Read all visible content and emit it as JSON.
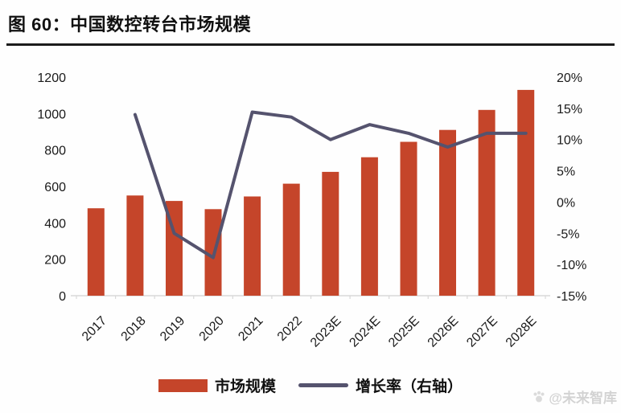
{
  "header": {
    "title": "图 60：中国数控转台市场规模"
  },
  "chart_data": {
    "type": "bar",
    "title": "中国数控转台市场规模",
    "categories": [
      "2017",
      "2018",
      "2019",
      "2020",
      "2021",
      "2022",
      "2023E",
      "2024E",
      "2025E",
      "2026E",
      "2027E",
      "2028E"
    ],
    "series": [
      {
        "name": "市场规模",
        "type": "bar",
        "axis": "left",
        "color": "#C5452A",
        "values": [
          480,
          550,
          520,
          475,
          545,
          615,
          680,
          760,
          845,
          910,
          1020,
          1130
        ]
      },
      {
        "name": "增长率（右轴）",
        "type": "line",
        "axis": "right",
        "color": "#55536E",
        "values": [
          null,
          14.0,
          -5.0,
          -8.9,
          14.4,
          13.6,
          10.0,
          12.4,
          11.0,
          8.8,
          11.0,
          11.0
        ]
      }
    ],
    "left_axis": {
      "min": 0,
      "max": 1200,
      "step": 200,
      "ticks": [
        "0",
        "200",
        "400",
        "600",
        "800",
        "1000",
        "1200"
      ]
    },
    "right_axis": {
      "min": -15,
      "max": 20,
      "step": 5,
      "ticks": [
        "-15%",
        "-10%",
        "-5%",
        "0%",
        "5%",
        "10%",
        "15%",
        "20%"
      ]
    },
    "xlabel": "",
    "ylabel": "",
    "grid": false,
    "legend_position": "bottom",
    "x_label_rotation": -45
  },
  "colors": {
    "axis_line": "#D8D8D8",
    "tick_text": "#1A1A1A",
    "watermark": "#CCCCCC"
  },
  "watermark": {
    "text": "@未来智库"
  }
}
